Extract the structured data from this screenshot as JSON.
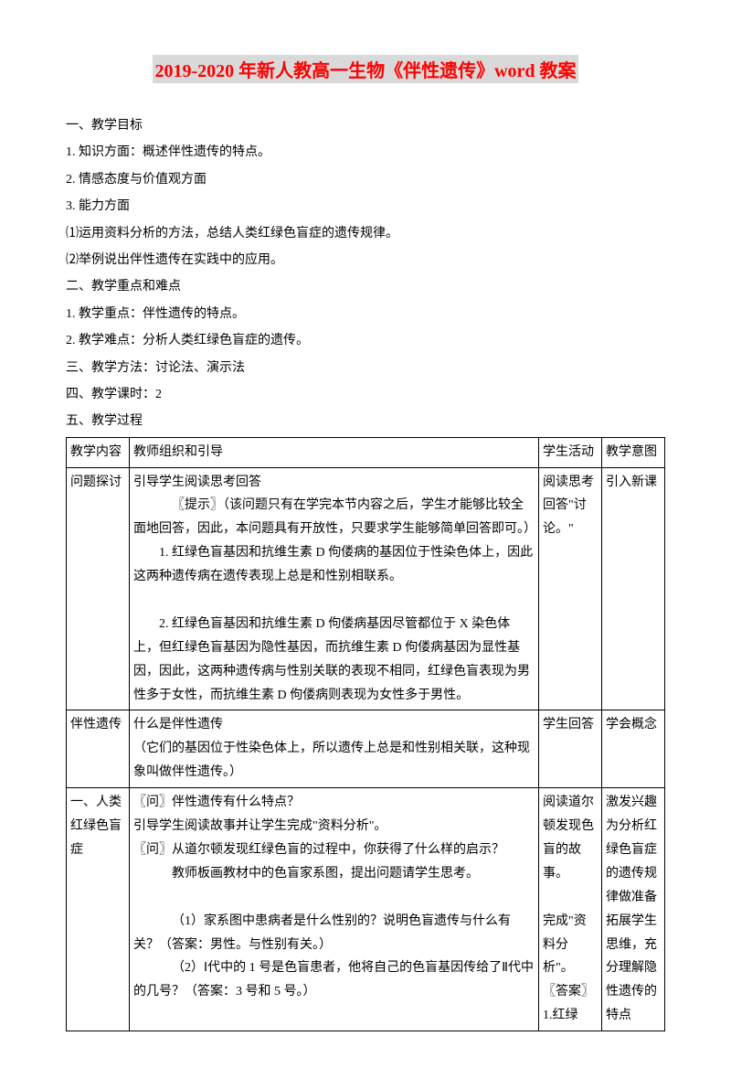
{
  "title": "2019-2020 年新人教高一生物《伴性遗传》word 教案",
  "lines": [
    "一、教学目标",
    "1. 知识方面：概述伴性遗传的特点。",
    "2. 情感态度与价值观方面",
    "3. 能力方面",
    "⑴运用资料分析的方法，总结人类红绿色盲症的遗传规律。",
    "⑵举例说出伴性遗传在实践中的应用。",
    "二、教学重点和难点",
    "1. 教学重点：伴性遗传的特点。",
    "2. 教学难点：分析人类红绿色盲症的遗传。",
    "三、教学方法：讨论法、演示法",
    "四、教学课时：2",
    "五、教学过程"
  ],
  "table": {
    "header": {
      "c1": "教学内容",
      "c2": "教师组织和引导",
      "c3": "学生活动",
      "c4": "教学意图"
    },
    "rows": [
      {
        "c1": "问题探讨",
        "c2": [
          {
            "cls": "para",
            "t": "引导学生阅读思考回答"
          },
          {
            "cls": "indent2",
            "t": "〖提示〗（该问题只有在学完本节内容之后，学生才能够比较全面地回答，因此，本问题具有开放性，只要求学生能够简单回答即可。）"
          },
          {
            "cls": "indent",
            "t": "1. 红绿色盲基因和抗维生素 D 佝偻病的基因位于性染色体上，因此这两种遗传病在遗传表现上总是和性别相联系。"
          },
          {
            "cls": "para",
            "t": "　"
          },
          {
            "cls": "indent",
            "t": "2. 红绿色盲基因和抗维生素 D 佝偻病基因尽管都位于 X 染色体上，但红绿色盲基因为隐性基因，而抗维生素 D 佝偻病基因为显性基因，因此，这两种遗传病与性别关联的表现不相同，红绿色盲表现为男性多于女性，而抗维生素 D 佝偻病则表现为女性多于男性。"
          }
        ],
        "c3": "阅读思考回答\"讨论。\"",
        "c4": "引入新课"
      },
      {
        "c1": "伴性遗传",
        "c2": [
          {
            "cls": "para",
            "t": "什么是伴性遗传"
          },
          {
            "cls": "para",
            "t": "（它们的基因位于性染色体上，所以遗传上总是和性别相关联，这种现象叫做伴性遗传。）"
          }
        ],
        "c3": "学生回答",
        "c4": "学会概念"
      },
      {
        "c1": "一、人类红绿色盲症",
        "c2": [
          {
            "cls": "para",
            "t": "〖问〗伴性遗传有什么特点？"
          },
          {
            "cls": "para",
            "t": "引导学生阅读故事并让学生完成\"资料分析\"。"
          },
          {
            "cls": "para",
            "t": "〖问〗从道尔顿发现红绿色盲的过程中，你获得了什么样的启示？"
          },
          {
            "cls": "indent2",
            "t": "教师板画教材中的色盲家系图，提出问题请学生思考。"
          },
          {
            "cls": "para",
            "t": "　"
          },
          {
            "cls": "indent2",
            "t": "（1）家系图中患病者是什么性别的？说明色盲遗传与什么有关？（答案：男性。与性别有关。）"
          },
          {
            "cls": "indent2",
            "t": "（2）Ⅰ代中的 1 号是色盲患者，他将自己的色盲基因传给了Ⅱ代中的几号？（答案：3 号和 5 号。）"
          }
        ],
        "c3": "阅读道尔顿发现色盲的故事。\n\n完成\"资料分析\"。\n〖答案〗1.红绿",
        "c4": "激发兴趣为分析红绿色盲症的遗传规律做准备拓展学生思维，充分理解隐性遗传的特点"
      }
    ]
  }
}
